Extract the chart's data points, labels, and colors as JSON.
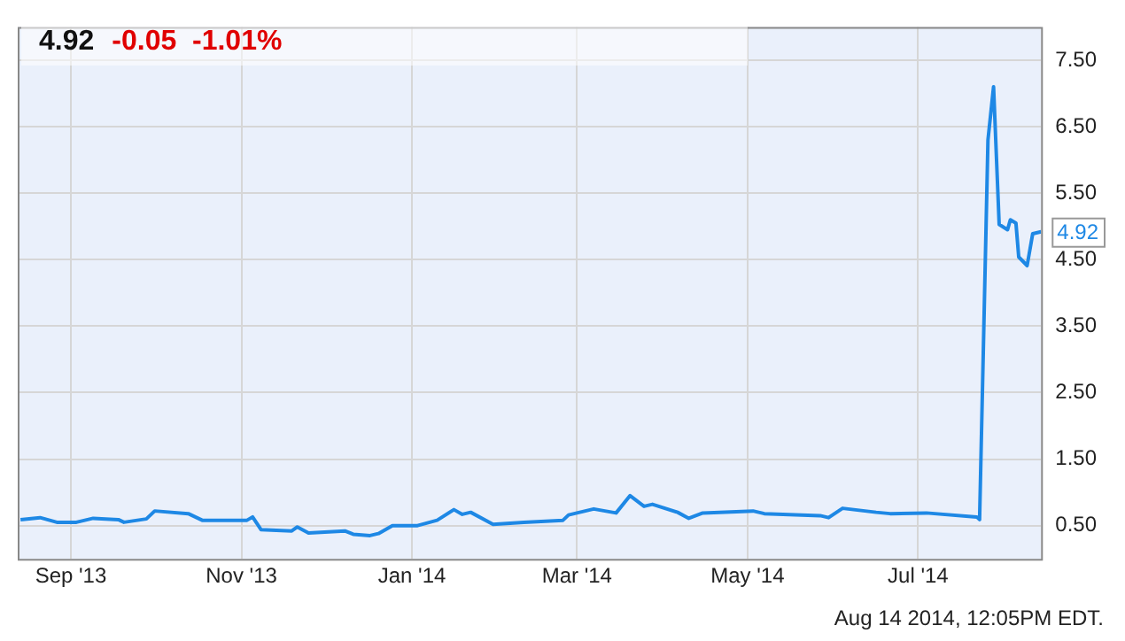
{
  "chart_data": {
    "type": "line",
    "title": "4.92",
    "subtitle": "-0.05  -1.01%",
    "x": [
      "2013-08-14",
      "2013-08-21",
      "2013-08-27",
      "2013-09-03",
      "2013-09-09",
      "2013-09-18",
      "2013-09-20",
      "2013-09-28",
      "2013-10-01",
      "2013-10-13",
      "2013-10-18",
      "2013-11-03",
      "2013-11-05",
      "2013-11-08",
      "2013-11-19",
      "2013-11-21",
      "2013-11-25",
      "2013-12-08",
      "2013-12-11",
      "2013-12-17",
      "2013-12-20",
      "2013-12-25",
      "2014-01-03",
      "2014-01-10",
      "2014-01-16",
      "2014-01-19",
      "2014-01-22",
      "2014-01-30",
      "2014-02-10",
      "2014-02-24",
      "2014-02-26",
      "2014-03-07",
      "2014-03-15",
      "2014-03-20",
      "2014-03-25",
      "2014-03-28",
      "2014-04-06",
      "2014-04-10",
      "2014-04-15",
      "2014-05-03",
      "2014-05-07",
      "2014-05-27",
      "2014-05-30",
      "2014-06-04",
      "2014-06-16",
      "2014-06-21",
      "2014-07-04",
      "2014-07-22",
      "2014-07-23",
      "2014-07-26",
      "2014-07-28",
      "2014-07-30",
      "2014-08-02",
      "2014-08-03",
      "2014-08-05",
      "2014-08-06",
      "2014-08-09",
      "2014-08-11",
      "2014-08-14"
    ],
    "series": [
      {
        "color": "#1e88e5",
        "values": [
          0.59,
          0.62,
          0.55,
          0.55,
          0.61,
          0.59,
          0.55,
          0.6,
          0.72,
          0.68,
          0.58,
          0.58,
          0.63,
          0.44,
          0.42,
          0.48,
          0.39,
          0.42,
          0.37,
          0.35,
          0.38,
          0.5,
          0.5,
          0.58,
          0.74,
          0.67,
          0.7,
          0.52,
          0.55,
          0.58,
          0.66,
          0.75,
          0.69,
          0.95,
          0.79,
          0.82,
          0.7,
          0.61,
          0.69,
          0.72,
          0.68,
          0.65,
          0.62,
          0.76,
          0.7,
          0.68,
          0.69,
          0.63,
          0.59,
          6.3,
          7.1,
          5.03,
          4.95,
          5.1,
          5.05,
          4.54,
          4.41,
          4.89,
          4.92
        ]
      }
    ],
    "xlim": [
      "2013-08-13",
      "2014-08-14"
    ],
    "xticks": [
      {
        "value": "2013-09-01",
        "label": "Sep '13"
      },
      {
        "value": "2013-11-01",
        "label": "Nov '13"
      },
      {
        "value": "2014-01-01",
        "label": "Jan '14"
      },
      {
        "value": "2014-03-01",
        "label": "Mar '14"
      },
      {
        "value": "2014-05-01",
        "label": "May '14"
      },
      {
        "value": "2014-07-01",
        "label": "Jul '14"
      }
    ],
    "ylim": [
      0,
      8
    ],
    "yticks": [
      {
        "value": 0.5,
        "label": "0.50"
      },
      {
        "value": 1.5,
        "label": "1.50"
      },
      {
        "value": 2.5,
        "label": "2.50"
      },
      {
        "value": 3.5,
        "label": "3.50"
      },
      {
        "value": 4.5,
        "label": "4.50"
      },
      {
        "value": 5.5,
        "label": "5.50"
      },
      {
        "value": 6.5,
        "label": "6.50"
      },
      {
        "value": 7.5,
        "label": "7.50"
      }
    ],
    "grid": true,
    "legend": false,
    "marker": "none",
    "line_style": "solid",
    "annotations": [
      {
        "text": "4.92",
        "x": "2014-08-14",
        "y": 4.92
      },
      "Aug 14 2014, 12:05PM EDT."
    ]
  }
}
